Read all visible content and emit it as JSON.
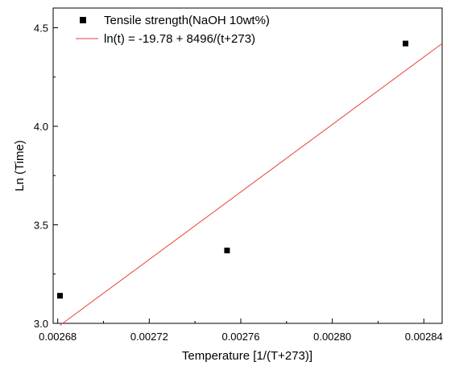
{
  "chart_data": {
    "type": "scatter",
    "title": "",
    "xlabel": "Temperature [1/(T+273)]",
    "ylabel": "Ln (Time)",
    "xlim": [
      0.002678,
      0.002848
    ],
    "ylim": [
      3.0,
      4.6
    ],
    "x_ticks": [
      0.00268,
      0.00272,
      0.00276,
      0.0028,
      0.00284
    ],
    "x_tick_labels": [
      "0.00268",
      "0.00272",
      "0.00276",
      "0.00280",
      "0.00284"
    ],
    "y_ticks": [
      3.0,
      3.5,
      4.0,
      4.5
    ],
    "y_tick_labels": [
      "3.0",
      "3.5",
      "4.0",
      "4.5"
    ],
    "grid": false,
    "legend_position": "top-left",
    "series": [
      {
        "name": "Tensile strength(NaOH 10wt%)",
        "kind": "scatter",
        "marker": "square",
        "color": "#000000",
        "points": [
          {
            "x": 0.002681,
            "y": 3.14
          },
          {
            "x": 0.002754,
            "y": 3.37
          },
          {
            "x": 0.002832,
            "y": 4.42
          }
        ]
      },
      {
        "name": "ln(t) = -19.78 + 8496/(t+273)",
        "kind": "line",
        "color": "#e8413a",
        "points": [
          {
            "x": 0.002681,
            "y": 2.99
          },
          {
            "x": 0.002848,
            "y": 4.42
          }
        ]
      }
    ]
  }
}
